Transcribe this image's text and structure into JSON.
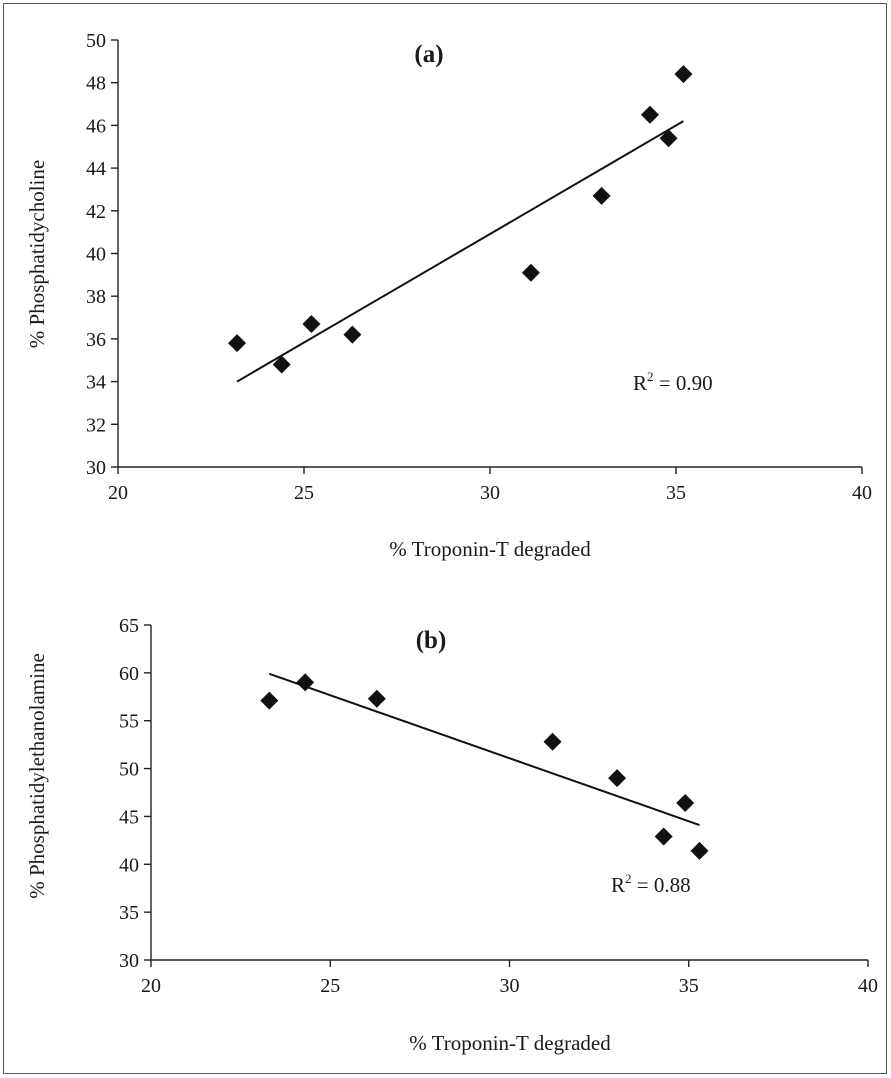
{
  "chart_data": [
    {
      "type": "scatter",
      "panel_label": "(a)",
      "xlabel": "% Troponin-T degraded",
      "ylabel": "% Phosphatidycholine",
      "xlim": [
        20,
        40
      ],
      "ylim": [
        30,
        50
      ],
      "xticks": [
        20,
        25,
        30,
        35,
        40
      ],
      "yticks": [
        30,
        32,
        34,
        36,
        38,
        40,
        42,
        44,
        46,
        48,
        50
      ],
      "points": [
        {
          "x": 23.2,
          "y": 35.8
        },
        {
          "x": 24.4,
          "y": 34.8
        },
        {
          "x": 25.2,
          "y": 36.7
        },
        {
          "x": 26.3,
          "y": 36.2
        },
        {
          "x": 31.1,
          "y": 39.1
        },
        {
          "x": 33.0,
          "y": 42.7
        },
        {
          "x": 34.3,
          "y": 46.5
        },
        {
          "x": 34.8,
          "y": 45.4
        },
        {
          "x": 35.2,
          "y": 48.4
        }
      ],
      "trendline": {
        "x": [
          23.2,
          35.2
        ],
        "y": [
          34.0,
          46.2
        ]
      },
      "r2_label": "R",
      "r2_sup": "2",
      "r2_value": " = 0.90"
    },
    {
      "type": "scatter",
      "panel_label": "(b)",
      "xlabel": "% Troponin-T degraded",
      "ylabel": "% Phosphatidylethanolamine",
      "xlim": [
        20,
        40
      ],
      "ylim": [
        30,
        65
      ],
      "xticks": [
        20,
        25,
        30,
        35,
        40
      ],
      "yticks": [
        30,
        35,
        40,
        45,
        50,
        55,
        60,
        65
      ],
      "points": [
        {
          "x": 23.3,
          "y": 57.1
        },
        {
          "x": 24.3,
          "y": 59.0
        },
        {
          "x": 26.3,
          "y": 57.3
        },
        {
          "x": 31.2,
          "y": 52.8
        },
        {
          "x": 33.0,
          "y": 49.0
        },
        {
          "x": 34.3,
          "y": 42.9
        },
        {
          "x": 34.9,
          "y": 46.4
        },
        {
          "x": 35.3,
          "y": 41.4
        }
      ],
      "trendline": {
        "x": [
          23.3,
          35.3
        ],
        "y": [
          59.9,
          44.1
        ]
      },
      "r2_label": "R",
      "r2_sup": "2",
      "r2_value": " = 0.88"
    }
  ]
}
